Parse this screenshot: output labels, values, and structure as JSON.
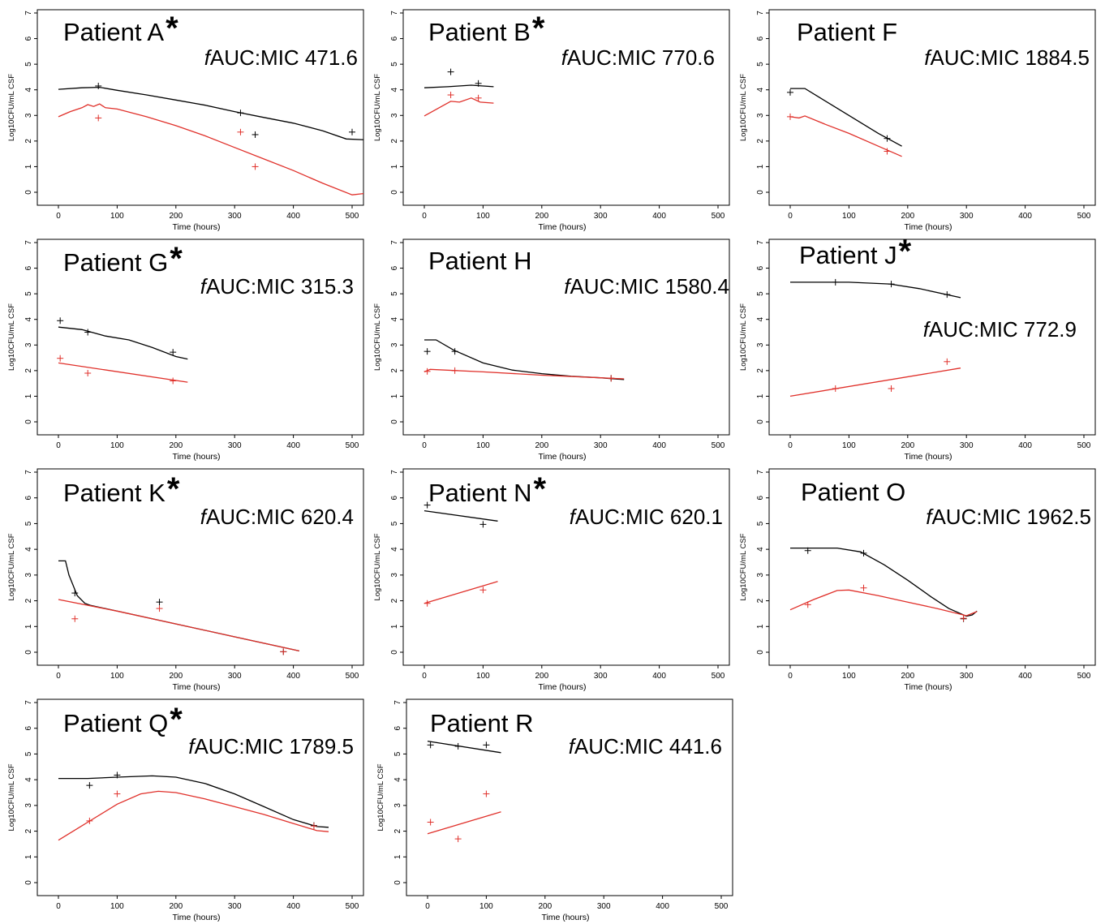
{
  "figure": {
    "xlabel": "Time (hours)",
    "ylabel": "Log10CFU/mL CSF",
    "xlim": [
      0,
      500
    ],
    "ylim": [
      0,
      7
    ],
    "x_ticks": [
      0,
      100,
      200,
      300,
      400,
      500
    ],
    "y_ticks": [
      0,
      1,
      2,
      3,
      4,
      5,
      6,
      7
    ],
    "colors": {
      "observed_obs_black": "#000000",
      "model_red": "#e0302a",
      "frame": "#000000"
    }
  },
  "chart_data": [
    {
      "type": "line",
      "title": "Patient A",
      "asterisk": true,
      "metric_prefix": "f",
      "metric": "AUC:MIC 471.6",
      "xlim": [
        0,
        500
      ],
      "ylim": [
        0,
        7
      ],
      "series": [
        {
          "color": "black",
          "line": [
            [
              0,
              4.02
            ],
            [
              40,
              4.08
            ],
            [
              70,
              4.1
            ],
            [
              100,
              3.98
            ],
            [
              150,
              3.8
            ],
            [
              200,
              3.6
            ],
            [
              250,
              3.4
            ],
            [
              300,
              3.15
            ],
            [
              350,
              2.92
            ],
            [
              400,
              2.7
            ],
            [
              450,
              2.4
            ],
            [
              490,
              2.08
            ],
            [
              520,
              2.05
            ]
          ],
          "points": [
            [
              68,
              4.15
            ],
            [
              310,
              3.1
            ],
            [
              335,
              2.25
            ],
            [
              500,
              2.35
            ]
          ]
        },
        {
          "color": "red",
          "line": [
            [
              0,
              2.95
            ],
            [
              20,
              3.15
            ],
            [
              40,
              3.3
            ],
            [
              50,
              3.42
            ],
            [
              60,
              3.35
            ],
            [
              70,
              3.45
            ],
            [
              80,
              3.3
            ],
            [
              100,
              3.25
            ],
            [
              150,
              2.95
            ],
            [
              200,
              2.6
            ],
            [
              250,
              2.2
            ],
            [
              300,
              1.75
            ],
            [
              350,
              1.3
            ],
            [
              400,
              0.85
            ],
            [
              450,
              0.35
            ],
            [
              500,
              -0.1
            ],
            [
              520,
              -0.05
            ]
          ],
          "points": [
            [
              68,
              2.9
            ],
            [
              310,
              2.35
            ],
            [
              335,
              1.0
            ]
          ]
        }
      ]
    },
    {
      "type": "line",
      "title": "Patient B",
      "asterisk": true,
      "metric_prefix": "f",
      "metric": "AUC:MIC 770.6",
      "xlim": [
        0,
        500
      ],
      "ylim": [
        0,
        7
      ],
      "series": [
        {
          "color": "black",
          "line": [
            [
              0,
              4.08
            ],
            [
              40,
              4.12
            ],
            [
              80,
              4.18
            ],
            [
              118,
              4.12
            ]
          ],
          "points": [
            [
              45,
              4.7
            ],
            [
              92,
              4.25
            ]
          ]
        },
        {
          "color": "red",
          "line": [
            [
              0,
              2.98
            ],
            [
              45,
              3.55
            ],
            [
              60,
              3.52
            ],
            [
              80,
              3.68
            ],
            [
              95,
              3.52
            ],
            [
              118,
              3.48
            ]
          ],
          "points": [
            [
              45,
              3.8
            ],
            [
              92,
              3.68
            ]
          ]
        }
      ]
    },
    {
      "type": "line",
      "title": "Patient F",
      "asterisk": false,
      "metric_prefix": "f",
      "metric": "AUC:MIC 1884.5",
      "xlim": [
        0,
        500
      ],
      "ylim": [
        0,
        7
      ],
      "series": [
        {
          "color": "black",
          "line": [
            [
              0,
              4.05
            ],
            [
              25,
              4.05
            ],
            [
              50,
              3.7
            ],
            [
              100,
              3.0
            ],
            [
              150,
              2.3
            ],
            [
              190,
              1.8
            ]
          ],
          "points": [
            [
              0,
              3.9
            ],
            [
              165,
              2.1
            ]
          ]
        },
        {
          "color": "red",
          "line": [
            [
              0,
              2.95
            ],
            [
              15,
              2.9
            ],
            [
              25,
              2.98
            ],
            [
              60,
              2.65
            ],
            [
              100,
              2.3
            ],
            [
              150,
              1.8
            ],
            [
              190,
              1.4
            ]
          ],
          "points": [
            [
              0,
              2.95
            ],
            [
              165,
              1.6
            ]
          ]
        }
      ]
    },
    {
      "type": "line",
      "title": "Patient G",
      "asterisk": true,
      "metric_prefix": "f",
      "metric": "AUC:MIC 315.3",
      "xlim": [
        0,
        500
      ],
      "ylim": [
        0,
        7
      ],
      "series": [
        {
          "color": "black",
          "line": [
            [
              0,
              3.7
            ],
            [
              40,
              3.6
            ],
            [
              80,
              3.35
            ],
            [
              120,
              3.2
            ],
            [
              160,
              2.9
            ],
            [
              200,
              2.55
            ],
            [
              220,
              2.45
            ]
          ],
          "points": [
            [
              3,
              3.95
            ],
            [
              50,
              3.5
            ],
            [
              195,
              2.72
            ]
          ]
        },
        {
          "color": "red",
          "line": [
            [
              0,
              2.3
            ],
            [
              220,
              1.55
            ]
          ],
          "points": [
            [
              3,
              2.48
            ],
            [
              50,
              1.9
            ],
            [
              195,
              1.6
            ]
          ]
        }
      ]
    },
    {
      "type": "line",
      "title": "Patient H",
      "asterisk": false,
      "metric_prefix": "f",
      "metric": "AUC:MIC 1580.4",
      "xlim": [
        0,
        500
      ],
      "ylim": [
        0,
        7
      ],
      "series": [
        {
          "color": "black",
          "line": [
            [
              0,
              3.2
            ],
            [
              20,
              3.2
            ],
            [
              50,
              2.8
            ],
            [
              100,
              2.3
            ],
            [
              150,
              2.02
            ],
            [
              200,
              1.88
            ],
            [
              250,
              1.78
            ],
            [
              300,
              1.72
            ],
            [
              340,
              1.65
            ]
          ],
          "points": [
            [
              5,
              2.75
            ],
            [
              52,
              2.75
            ],
            [
              318,
              1.7
            ]
          ]
        },
        {
          "color": "red",
          "line": [
            [
              0,
              1.95
            ],
            [
              10,
              2.05
            ],
            [
              100,
              1.95
            ],
            [
              200,
              1.82
            ],
            [
              300,
              1.72
            ],
            [
              340,
              1.68
            ]
          ],
          "points": [
            [
              5,
              1.97
            ],
            [
              52,
              2.0
            ],
            [
              318,
              1.7
            ]
          ]
        }
      ]
    },
    {
      "type": "line",
      "title": "Patient J",
      "asterisk": true,
      "metric_prefix": "f",
      "metric": "AUC:MIC 772.9",
      "xlim": [
        0,
        500
      ],
      "ylim": [
        0,
        7
      ],
      "series": [
        {
          "color": "black",
          "line": [
            [
              0,
              5.45
            ],
            [
              100,
              5.45
            ],
            [
              170,
              5.38
            ],
            [
              220,
              5.2
            ],
            [
              290,
              4.85
            ]
          ],
          "points": [
            [
              77,
              5.45
            ],
            [
              172,
              5.38
            ],
            [
              267,
              4.97
            ]
          ]
        },
        {
          "color": "red",
          "line": [
            [
              0,
              1.0
            ],
            [
              290,
              2.1
            ]
          ],
          "points": [
            [
              77,
              1.3
            ],
            [
              172,
              1.3
            ],
            [
              267,
              2.35
            ]
          ]
        }
      ]
    },
    {
      "type": "line",
      "title": "Patient K",
      "asterisk": true,
      "metric_prefix": "f",
      "metric": "AUC:MIC 620.4",
      "xlim": [
        0,
        500
      ],
      "ylim": [
        0,
        7
      ],
      "series": [
        {
          "color": "black",
          "line": [
            [
              0,
              3.55
            ],
            [
              12,
              3.55
            ],
            [
              18,
              3.0
            ],
            [
              25,
              2.6
            ],
            [
              32,
              2.2
            ],
            [
              45,
              1.9
            ],
            [
              55,
              1.82
            ],
            [
              100,
              1.6
            ],
            [
              200,
              1.1
            ],
            [
              300,
              0.6
            ],
            [
              410,
              0.05
            ]
          ],
          "points": [
            [
              28,
              2.3
            ],
            [
              172,
              1.95
            ],
            [
              383,
              0.02
            ]
          ]
        },
        {
          "color": "red",
          "line": [
            [
              0,
              2.05
            ],
            [
              100,
              1.6
            ],
            [
              200,
              1.1
            ],
            [
              300,
              0.6
            ],
            [
              410,
              0.05
            ]
          ],
          "points": [
            [
              28,
              1.3
            ],
            [
              172,
              1.7
            ],
            [
              383,
              0.02
            ]
          ]
        }
      ]
    },
    {
      "type": "line",
      "title": "Patient N",
      "asterisk": true,
      "metric_prefix": "f",
      "metric": "AUC:MIC 620.1",
      "xlim": [
        0,
        500
      ],
      "ylim": [
        0,
        7
      ],
      "series": [
        {
          "color": "black",
          "line": [
            [
              0,
              5.5
            ],
            [
              125,
              5.1
            ]
          ],
          "points": [
            [
              5,
              5.72
            ],
            [
              100,
              4.97
            ]
          ]
        },
        {
          "color": "red",
          "line": [
            [
              0,
              1.9
            ],
            [
              125,
              2.75
            ]
          ],
          "points": [
            [
              5,
              1.9
            ],
            [
              100,
              2.42
            ]
          ]
        }
      ]
    },
    {
      "type": "line",
      "title": "Patient O",
      "asterisk": false,
      "metric_prefix": "f",
      "metric": "AUC:MIC 1962.5",
      "xlim": [
        0,
        500
      ],
      "ylim": [
        0,
        7
      ],
      "series": [
        {
          "color": "black",
          "line": [
            [
              0,
              4.05
            ],
            [
              80,
              4.05
            ],
            [
              120,
              3.9
            ],
            [
              160,
              3.4
            ],
            [
              200,
              2.8
            ],
            [
              240,
              2.15
            ],
            [
              270,
              1.7
            ],
            [
              300,
              1.4
            ],
            [
              310,
              1.45
            ],
            [
              318,
              1.6
            ]
          ],
          "points": [
            [
              30,
              3.95
            ],
            [
              125,
              3.85
            ],
            [
              295,
              1.3
            ]
          ]
        },
        {
          "color": "red",
          "line": [
            [
              0,
              1.65
            ],
            [
              40,
              2.05
            ],
            [
              80,
              2.4
            ],
            [
              100,
              2.42
            ],
            [
              150,
              2.2
            ],
            [
              200,
              1.95
            ],
            [
              250,
              1.7
            ],
            [
              300,
              1.42
            ],
            [
              318,
              1.58
            ]
          ],
          "points": [
            [
              30,
              1.85
            ],
            [
              125,
              2.5
            ],
            [
              295,
              1.32
            ]
          ]
        }
      ]
    },
    {
      "type": "line",
      "title": "Patient Q",
      "asterisk": true,
      "metric_prefix": "f",
      "metric": "AUC:MIC 1789.5",
      "xlim": [
        0,
        500
      ],
      "ylim": [
        0,
        7
      ],
      "series": [
        {
          "color": "black",
          "line": [
            [
              0,
              4.05
            ],
            [
              50,
              4.05
            ],
            [
              100,
              4.1
            ],
            [
              160,
              4.15
            ],
            [
              200,
              4.1
            ],
            [
              250,
              3.85
            ],
            [
              300,
              3.45
            ],
            [
              350,
              2.95
            ],
            [
              400,
              2.45
            ],
            [
              440,
              2.18
            ],
            [
              460,
              2.15
            ]
          ],
          "points": [
            [
              53,
              3.78
            ],
            [
              100,
              4.18
            ],
            [
              435,
              2.22
            ]
          ]
        },
        {
          "color": "red",
          "line": [
            [
              0,
              1.65
            ],
            [
              50,
              2.35
            ],
            [
              100,
              3.05
            ],
            [
              140,
              3.45
            ],
            [
              170,
              3.55
            ],
            [
              200,
              3.5
            ],
            [
              250,
              3.25
            ],
            [
              300,
              2.95
            ],
            [
              350,
              2.65
            ],
            [
              400,
              2.3
            ],
            [
              440,
              2.02
            ],
            [
              460,
              1.98
            ]
          ],
          "points": [
            [
              53,
              2.4
            ],
            [
              100,
              3.45
            ],
            [
              435,
              2.2
            ]
          ]
        }
      ]
    },
    {
      "type": "line",
      "title": "Patient R",
      "asterisk": false,
      "metric_prefix": "f",
      "metric": "AUC:MIC 441.6",
      "xlim": [
        0,
        500
      ],
      "ylim": [
        0,
        7
      ],
      "series": [
        {
          "color": "black",
          "line": [
            [
              0,
              5.5
            ],
            [
              125,
              5.05
            ]
          ],
          "points": [
            [
              5,
              5.35
            ],
            [
              52,
              5.3
            ],
            [
              100,
              5.35
            ]
          ]
        },
        {
          "color": "red",
          "line": [
            [
              0,
              1.9
            ],
            [
              125,
              2.75
            ]
          ],
          "points": [
            [
              5,
              2.35
            ],
            [
              52,
              1.7
            ],
            [
              100,
              3.45
            ]
          ]
        }
      ]
    }
  ]
}
